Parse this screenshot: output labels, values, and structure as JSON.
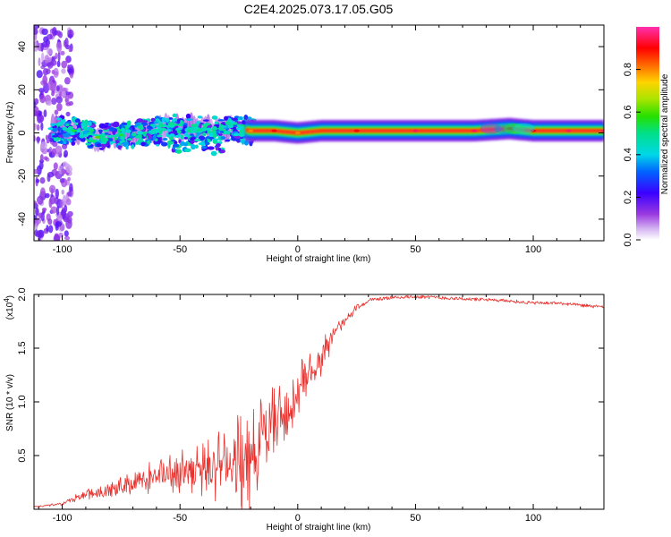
{
  "figure": {
    "title": "C2E4.2025.073.17.05.G05"
  },
  "chart_data": [
    {
      "type": "heatmap",
      "title": "C2E4.2025.073.17.05.G05",
      "xlabel": "Height of straight line (km)",
      "ylabel": "Frequency (Hz)",
      "xlim": [
        -112,
        130
      ],
      "ylim": [
        -50,
        50
      ],
      "xticks": [
        -100,
        -50,
        0,
        50,
        100
      ],
      "xtick_labels": [
        "-100",
        "-50",
        "0",
        "50",
        "100"
      ],
      "yticks": [
        -40,
        -20,
        0,
        20,
        40
      ],
      "ytick_labels": [
        "-40",
        "-20",
        "0",
        "20",
        "40"
      ],
      "colorbar": {
        "label": "Normalized spectral amplitude",
        "range": [
          0,
          1
        ],
        "ticks": [
          0.0,
          0.2,
          0.4,
          0.6,
          0.8
        ],
        "tick_labels": [
          "0.0",
          "0.2",
          "0.4",
          "0.6",
          "0.8"
        ]
      },
      "ridge": {
        "description": "dominant frequency track",
        "x": [
          -105,
          -95,
          -85,
          -75,
          -65,
          -55,
          -45,
          -35,
          -25,
          -20,
          -10,
          0,
          10,
          25,
          50,
          75,
          90,
          100,
          115,
          130
        ],
        "frequency_hz": [
          2,
          1,
          -2,
          -1,
          0,
          3,
          2,
          2,
          2,
          1,
          1,
          0,
          1,
          1,
          1,
          1,
          2,
          1,
          1,
          1
        ],
        "amplitude": [
          0.4,
          0.55,
          0.6,
          0.55,
          0.5,
          0.45,
          0.45,
          0.45,
          0.4,
          0.8,
          0.9,
          0.8,
          0.85,
          0.9,
          0.95,
          0.95,
          0.9,
          0.9,
          0.95,
          0.95
        ]
      }
    },
    {
      "type": "line",
      "title": "",
      "xlabel": "Height of straight line (km)",
      "ylabel": "SNR (10 * v/v)",
      "y_multiplier": "(x10",
      "y_multiplier_exp": "4",
      "y_multiplier_close": ")",
      "xlim": [
        -112,
        130
      ],
      "ylim": [
        0,
        2.0
      ],
      "xticks": [
        -100,
        -50,
        0,
        50,
        100
      ],
      "xtick_labels": [
        "-100",
        "-50",
        "0",
        "50",
        "100"
      ],
      "yticks": [
        0.5,
        1.0,
        1.5,
        2.0
      ],
      "ytick_labels": [
        "0.5",
        "1.0",
        "1.5",
        "2.0"
      ],
      "series": [
        {
          "name": "SNR",
          "color": "#e8322e",
          "envelope_x": [
            -112,
            -100,
            -95,
            -90,
            -80,
            -70,
            -60,
            -50,
            -40,
            -30,
            -25,
            -20,
            -15,
            -10,
            -5,
            0,
            5,
            10,
            15,
            20,
            25,
            30,
            40,
            50,
            60,
            70,
            80,
            90,
            100,
            110,
            120,
            130
          ],
          "envelope_y": [
            0.03,
            0.06,
            0.12,
            0.18,
            0.25,
            0.33,
            0.45,
            0.55,
            0.6,
            0.7,
            0.8,
            0.85,
            0.95,
            1.1,
            1.2,
            1.3,
            1.45,
            1.6,
            1.7,
            1.8,
            1.9,
            1.95,
            1.97,
            1.98,
            1.97,
            1.96,
            1.95,
            1.94,
            1.92,
            1.92,
            1.9,
            1.88
          ],
          "noise_y": [
            0.01,
            0.02,
            0.05,
            0.08,
            0.12,
            0.15,
            0.25,
            0.35,
            0.45,
            0.5,
            0.65,
            0.7,
            0.6,
            0.5,
            0.45,
            0.4,
            0.3,
            0.3,
            0.15,
            0.08,
            0.05,
            0.02,
            0.015,
            0.01,
            0.015,
            0.015,
            0.02,
            0.025,
            0.02,
            0.015,
            0.015,
            0.01
          ]
        }
      ]
    }
  ]
}
